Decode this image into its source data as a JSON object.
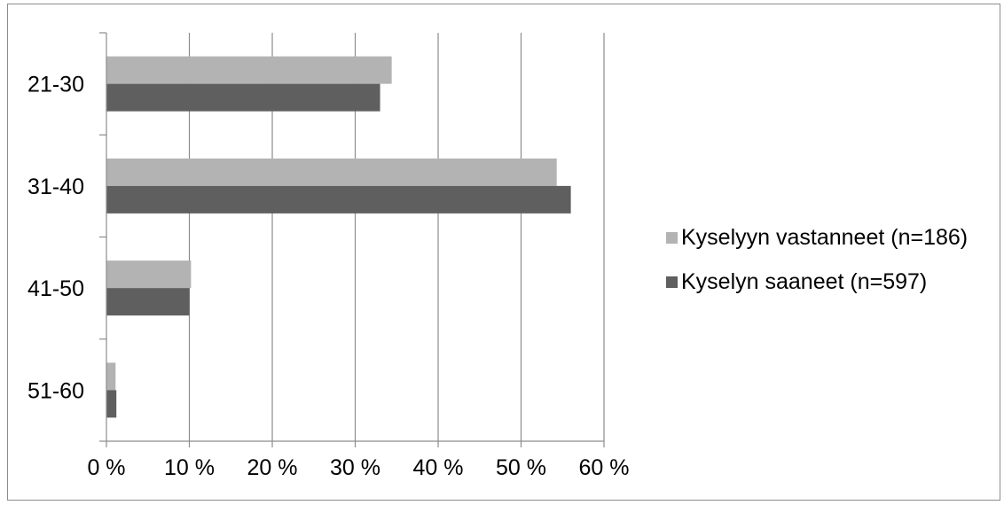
{
  "chart_data": {
    "type": "bar",
    "orientation": "horizontal",
    "categories": [
      "21-30",
      "31-40",
      "41-50",
      "51-60"
    ],
    "series": [
      {
        "name": "Kyselyyn vastanneet (n=186)",
        "color": "#b3b3b3",
        "values": [
          34.4,
          54.3,
          10.2,
          1.1
        ]
      },
      {
        "name": "Kyselyn saaneet (n=597)",
        "color": "#5f5f5f",
        "values": [
          33.0,
          56.0,
          10.0,
          1.2
        ]
      }
    ],
    "x_ticks": [
      "0 %",
      "10 %",
      "20 %",
      "30 %",
      "40 %",
      "50 %",
      "60 %"
    ],
    "xlim": [
      0,
      60
    ],
    "grid": "vertical",
    "legend_position": "right",
    "title": "",
    "xlabel": "",
    "ylabel": ""
  }
}
